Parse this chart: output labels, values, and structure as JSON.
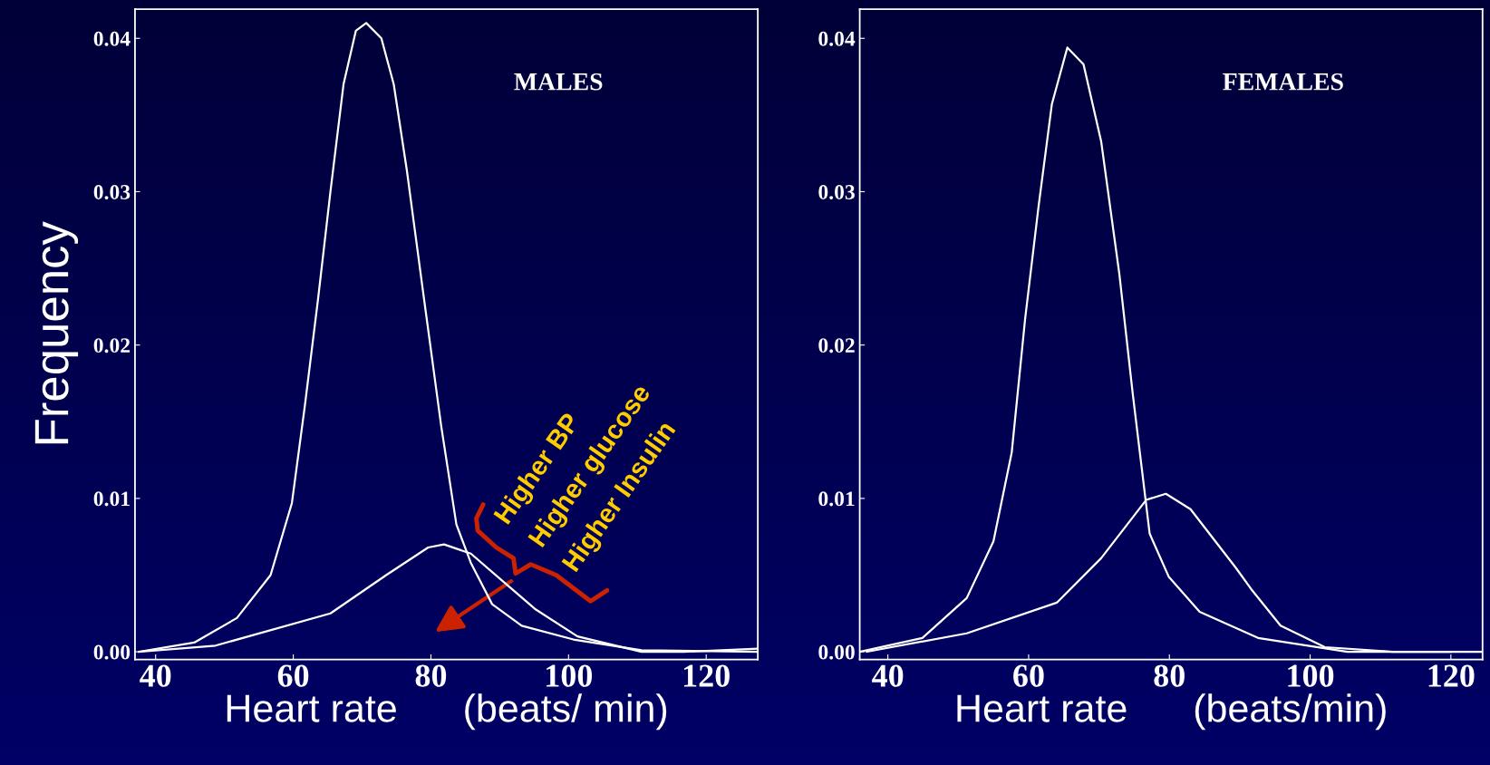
{
  "chart_data": [
    {
      "type": "line",
      "title": "MALES",
      "xlabel": "Heart rate      (beats/ min)",
      "ylabel": "Frequency",
      "xlim": [
        37,
        127.5
      ],
      "xticks": [
        40,
        60,
        80,
        100,
        120
      ],
      "ylim": [
        -0.0005,
        0.0419
      ],
      "yticks": [
        {
          "value": 0,
          "label": "0.00"
        },
        {
          "value": 0.01,
          "label": "0.01"
        },
        {
          "value": 0.02,
          "label": "0.02"
        },
        {
          "value": 0.03,
          "label": "0.03"
        },
        {
          "value": 0.04,
          "label": "0.04"
        }
      ],
      "grid": false,
      "marker": "none",
      "line_style": "solid",
      "series": [
        {
          "color": "#ffffff",
          "x": [
            37.6,
            45.6,
            51.8,
            56.7,
            59.8,
            61.7,
            63.6,
            65.4,
            67.3,
            69.1,
            70.6,
            72.8,
            74.6,
            76.5,
            79.0,
            81.5,
            83.7,
            85.8,
            88.9,
            93.2,
            100.7,
            110.6,
            127.5
          ],
          "values": [
            0,
            0.0006,
            0.0022,
            0.005,
            0.0097,
            0.0161,
            0.023,
            0.03,
            0.037,
            0.0405,
            0.041,
            0.04,
            0.037,
            0.0314,
            0.023,
            0.0147,
            0.0083,
            0.0058,
            0.0031,
            0.0017,
            0.0008,
            0.0001,
            0
          ]
        },
        {
          "color": "#ffffff",
          "x": [
            37.6,
            48.7,
            65.4,
            73.5,
            79.6,
            81.9,
            85.8,
            90.2,
            95.1,
            101.3,
            110.6,
            116.8,
            127.5
          ],
          "values": [
            0,
            0.0004,
            0.0025,
            0.005,
            0.0068,
            0.007,
            0.0064,
            0.0047,
            0.0028,
            0.001,
            0,
            0,
            0.0002
          ]
        }
      ],
      "annotations": [
        "Higher BP",
        "Higher glucose",
        "Higher Insulin"
      ]
    },
    {
      "type": "line",
      "title": "FEMALES",
      "xlabel": "Heart rate      (beats/min)",
      "xlim": [
        36,
        124.5
      ],
      "xticks": [
        40,
        60,
        80,
        100,
        120
      ],
      "ylim": [
        -0.0005,
        0.0419
      ],
      "yticks": [
        {
          "value": 0,
          "label": "0.00"
        },
        {
          "value": 0.01,
          "label": "0.01"
        },
        {
          "value": 0.02,
          "label": "0.02"
        },
        {
          "value": 0.03,
          "label": "0.03"
        },
        {
          "value": 0.04,
          "label": "0.04"
        }
      ],
      "grid": false,
      "marker": "none",
      "line_style": "solid",
      "series": [
        {
          "color": "#ffffff",
          "x": [
            36,
            44.9,
            51.2,
            55.0,
            57.6,
            59.5,
            61.4,
            63.3,
            65.5,
            67.8,
            70.3,
            72.9,
            74.8,
            77.2,
            79.9,
            84.3,
            92.6,
            105.3,
            124.4
          ],
          "values": [
            0,
            0.0009,
            0.0035,
            0.0072,
            0.013,
            0.0217,
            0.029,
            0.0357,
            0.0394,
            0.0383,
            0.0333,
            0.0246,
            0.0168,
            0.0077,
            0.0049,
            0.0026,
            0.0009,
            0,
            0
          ]
        },
        {
          "color": "#ffffff",
          "x": [
            37,
            51.2,
            64.0,
            70.3,
            76.7,
            79.5,
            83.0,
            89.4,
            91.6,
            95.8,
            102.1,
            111.7,
            120
          ],
          "values": [
            0,
            0.0012,
            0.0032,
            0.0061,
            0.0099,
            0.0103,
            0.0093,
            0.0055,
            0.0041,
            0.0017,
            0.0003,
            0,
            0
          ]
        }
      ]
    }
  ]
}
